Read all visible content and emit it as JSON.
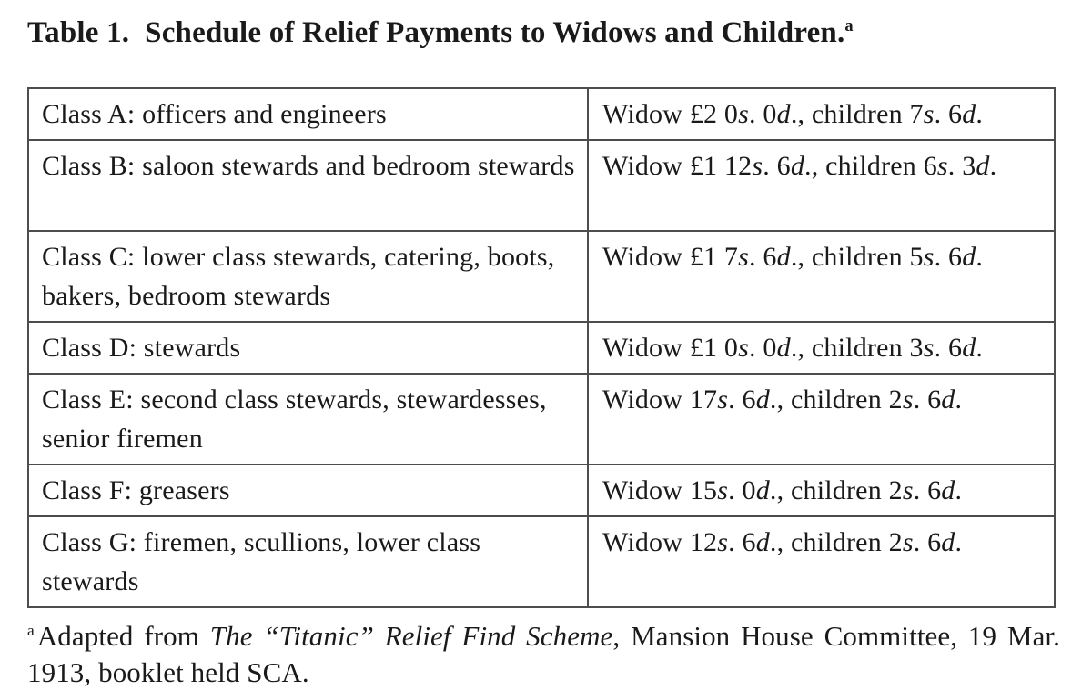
{
  "title": {
    "text": "Table 1.  Schedule of Relief Payments to Widows and Children.",
    "footnote_marker": "a"
  },
  "table": {
    "rows": [
      {
        "class_label": "Class A: officers and engineers",
        "payment": [
          {
            "t": "Widow £2 0"
          },
          {
            "t": "s",
            "i": true
          },
          {
            "t": ". 0"
          },
          {
            "t": "d",
            "i": true
          },
          {
            "t": "., children 7"
          },
          {
            "t": "s",
            "i": true
          },
          {
            "t": ". 6"
          },
          {
            "t": "d",
            "i": true
          },
          {
            "t": "."
          }
        ]
      },
      {
        "class_label": "Class B: saloon stewards and bedroom stewards",
        "payment": [
          {
            "t": "Widow £1 12"
          },
          {
            "t": "s",
            "i": true
          },
          {
            "t": ". 6"
          },
          {
            "t": "d",
            "i": true
          },
          {
            "t": "., children 6"
          },
          {
            "t": "s",
            "i": true
          },
          {
            "t": ". 3"
          },
          {
            "t": "d",
            "i": true
          },
          {
            "t": "."
          }
        ]
      },
      {
        "class_label": "Class C: lower class stewards, catering, boots, bakers, bedroom stewards",
        "payment": [
          {
            "t": "Widow £1 7"
          },
          {
            "t": "s",
            "i": true
          },
          {
            "t": ". 6"
          },
          {
            "t": "d",
            "i": true
          },
          {
            "t": "., children 5"
          },
          {
            "t": "s",
            "i": true
          },
          {
            "t": ". 6"
          },
          {
            "t": "d",
            "i": true
          },
          {
            "t": "."
          }
        ]
      },
      {
        "class_label": "Class D: stewards",
        "payment": [
          {
            "t": "Widow £1 0"
          },
          {
            "t": "s",
            "i": true
          },
          {
            "t": ". 0"
          },
          {
            "t": "d",
            "i": true
          },
          {
            "t": "., children 3"
          },
          {
            "t": "s",
            "i": true
          },
          {
            "t": ". 6"
          },
          {
            "t": "d",
            "i": true
          },
          {
            "t": "."
          }
        ]
      },
      {
        "class_label": "Class E: second class stewards, stewardesses, senior firemen",
        "payment": [
          {
            "t": "Widow 17"
          },
          {
            "t": "s",
            "i": true
          },
          {
            "t": ". 6"
          },
          {
            "t": "d",
            "i": true
          },
          {
            "t": "., children 2"
          },
          {
            "t": "s",
            "i": true
          },
          {
            "t": ". 6"
          },
          {
            "t": "d",
            "i": true
          },
          {
            "t": "."
          }
        ]
      },
      {
        "class_label": "Class F: greasers",
        "payment": [
          {
            "t": "Widow 15"
          },
          {
            "t": "s",
            "i": true
          },
          {
            "t": ". 0"
          },
          {
            "t": "d",
            "i": true
          },
          {
            "t": "., children 2"
          },
          {
            "t": "s",
            "i": true
          },
          {
            "t": ". 6"
          },
          {
            "t": "d",
            "i": true
          },
          {
            "t": "."
          }
        ]
      },
      {
        "class_label": "Class G: firemen, scullions, lower class stewards",
        "payment": [
          {
            "t": "Widow 12"
          },
          {
            "t": "s",
            "i": true
          },
          {
            "t": ". 6"
          },
          {
            "t": "d",
            "i": true
          },
          {
            "t": "., children 2"
          },
          {
            "t": "s",
            "i": true
          },
          {
            "t": ". 6"
          },
          {
            "t": "d",
            "i": true
          },
          {
            "t": "."
          }
        ]
      }
    ]
  },
  "footnote": {
    "lines": [
      [
        {
          "t": "a",
          "sup": true
        },
        {
          "t": "Adapted from "
        },
        {
          "t": "The “Titanic” Relief Find Scheme",
          "i": true
        },
        {
          "t": ", Mansion House Committee, 19 Mar."
        }
      ],
      [
        {
          "t": "1913, booklet held SCA."
        }
      ]
    ]
  }
}
